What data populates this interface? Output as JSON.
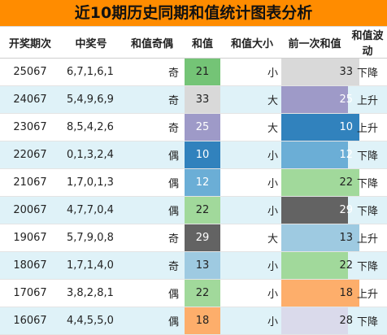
{
  "title": "近10期历史同期和值统计图表分析",
  "headers": [
    "开奖期次",
    "中奖号",
    "和值奇偶",
    "和值",
    "和值大小",
    "前一次和值",
    "和值波动"
  ],
  "rows": [
    {
      "issue": "25067",
      "numbers": "6,7,1,6,1",
      "parity": "奇",
      "sum": "21",
      "sum_color": "#74c476",
      "size": "小",
      "prev": "33",
      "prev_color": "#d9d9d9",
      "trend": "下降"
    },
    {
      "issue": "24067",
      "numbers": "5,4,9,6,9",
      "parity": "奇",
      "sum": "33",
      "sum_color": "#d9d9d9",
      "size": "大",
      "prev": "25",
      "prev_color": "#9e9ac8",
      "trend": "上升"
    },
    {
      "issue": "23067",
      "numbers": "8,5,4,2,6",
      "parity": "奇",
      "sum": "25",
      "sum_color": "#9e9ac8",
      "size": "大",
      "prev": "10",
      "prev_color": "#3182bd",
      "trend": "上升"
    },
    {
      "issue": "22067",
      "numbers": "0,1,3,2,4",
      "parity": "偶",
      "sum": "10",
      "sum_color": "#3182bd",
      "size": "小",
      "prev": "12",
      "prev_color": "#6baed6",
      "trend": "下降"
    },
    {
      "issue": "21067",
      "numbers": "1,7,0,1,3",
      "parity": "偶",
      "sum": "12",
      "sum_color": "#6baed6",
      "size": "小",
      "prev": "22",
      "prev_color": "#a1d99b",
      "trend": "下降"
    },
    {
      "issue": "20067",
      "numbers": "4,7,7,0,4",
      "parity": "偶",
      "sum": "22",
      "sum_color": "#a1d99b",
      "size": "小",
      "prev": "29",
      "prev_color": "#636363",
      "trend": "下降"
    },
    {
      "issue": "19067",
      "numbers": "5,7,9,0,8",
      "parity": "奇",
      "sum": "29",
      "sum_color": "#636363",
      "size": "大",
      "prev": "13",
      "prev_color": "#9ecae1",
      "trend": "上升"
    },
    {
      "issue": "18067",
      "numbers": "1,7,1,4,0",
      "parity": "奇",
      "sum": "13",
      "sum_color": "#9ecae1",
      "size": "小",
      "prev": "22",
      "prev_color": "#a1d99b",
      "trend": "下降"
    },
    {
      "issue": "17067",
      "numbers": "3,8,2,8,1",
      "parity": "偶",
      "sum": "22",
      "sum_color": "#a1d99b",
      "size": "小",
      "prev": "18",
      "prev_color": "#fdae6b",
      "trend": "上升"
    },
    {
      "issue": "16067",
      "numbers": "4,4,5,5,0",
      "parity": "偶",
      "sum": "18",
      "sum_color": "#fdae6b",
      "size": "小",
      "prev": "28",
      "prev_color": "#dadaeb",
      "trend": "下降"
    }
  ],
  "colors": {
    "title_bg": "#ff8c00",
    "alt_row_bg": "#dff2f8"
  }
}
